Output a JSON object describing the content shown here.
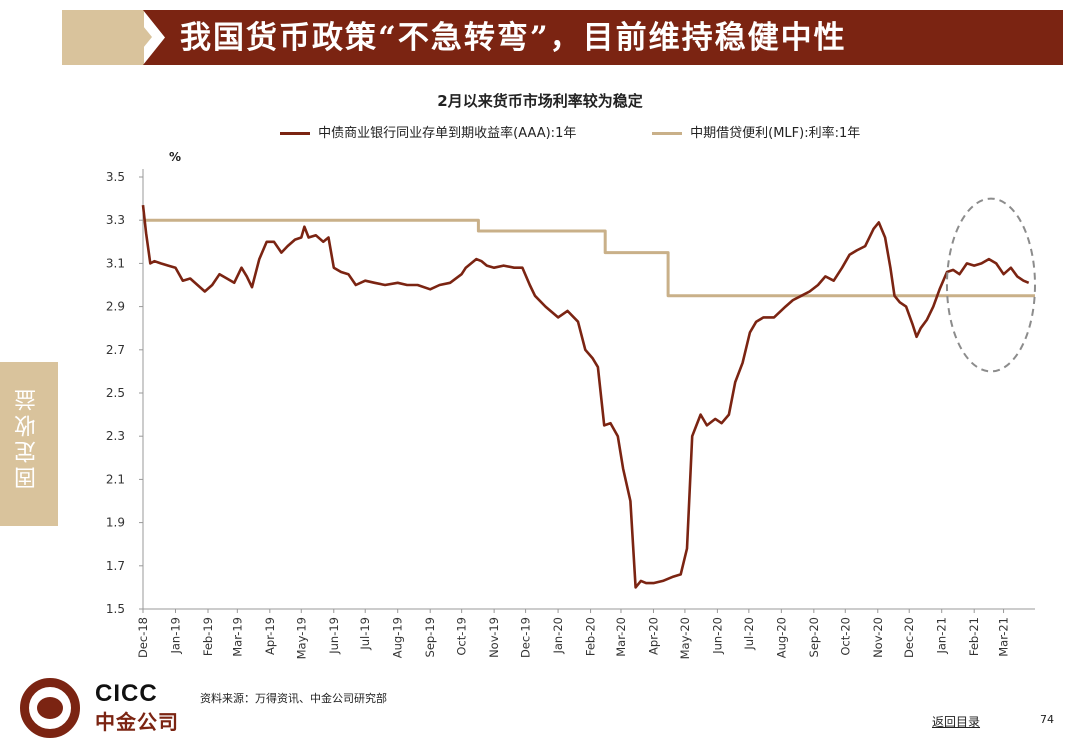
{
  "banner": {
    "title": "我国货币政策“不急转弯”，目前维持稳健中性"
  },
  "side_tab": {
    "label": "固定收益"
  },
  "footer": {
    "logo_en": "CICC",
    "logo_cn": "中金公司",
    "source": "资料来源：万得资讯、中金公司研究部",
    "back_link": "返回目录",
    "page_number": "74"
  },
  "colors": {
    "brand": "#7b2412",
    "accent": "#d9c39c",
    "series_cd": "#7b2412",
    "series_mlf": "#c9b089",
    "highlight": "#8c8c8c"
  },
  "chart_data": {
    "type": "line",
    "title": "2月以来货币市场利率较为稳定",
    "yunit": "%",
    "ylim": [
      1.5,
      3.5
    ],
    "yticks": [
      "3.5",
      "3.3",
      "3.1",
      "2.9",
      "2.7",
      "2.5",
      "2.3",
      "2.1",
      "1.9",
      "1.7",
      "1.5"
    ],
    "xlim": [
      "2018-12-01",
      "2021-03-31"
    ],
    "xticks": [
      "Dec-18",
      "Jan-19",
      "Feb-19",
      "Mar-19",
      "Apr-19",
      "May-19",
      "Jun-19",
      "Jul-19",
      "Aug-19",
      "Sep-19",
      "Oct-19",
      "Nov-19",
      "Dec-19",
      "Jan-20",
      "Feb-20",
      "Mar-20",
      "Apr-20",
      "May-20",
      "Jun-20",
      "Jul-20",
      "Aug-20",
      "Sep-20",
      "Oct-20",
      "Nov-20",
      "Dec-20",
      "Jan-21",
      "Feb-21",
      "Mar-21"
    ],
    "legend_position": "top",
    "highlight_ellipse": {
      "x_from": "2021-01-06",
      "x_to": "2021-03-31",
      "y_from": 2.6,
      "y_to": 3.4
    },
    "series": [
      {
        "name": "中债商业银行同业存单到期收益率(AAA):1年",
        "x": [
          "2018-12-01",
          "2018-12-04",
          "2018-12-08",
          "2018-12-12",
          "2018-12-18",
          "2018-12-25",
          "2019-01-01",
          "2019-01-08",
          "2019-01-15",
          "2019-01-22",
          "2019-01-29",
          "2019-02-05",
          "2019-02-12",
          "2019-02-19",
          "2019-02-26",
          "2019-03-05",
          "2019-03-10",
          "2019-03-15",
          "2019-03-22",
          "2019-03-29",
          "2019-04-05",
          "2019-04-12",
          "2019-04-18",
          "2019-04-25",
          "2019-05-01",
          "2019-05-04",
          "2019-05-08",
          "2019-05-15",
          "2019-05-22",
          "2019-05-27",
          "2019-06-01",
          "2019-06-08",
          "2019-06-15",
          "2019-06-22",
          "2019-07-01",
          "2019-07-10",
          "2019-07-20",
          "2019-08-01",
          "2019-08-10",
          "2019-08-20",
          "2019-09-01",
          "2019-09-10",
          "2019-09-20",
          "2019-10-01",
          "2019-10-05",
          "2019-10-10",
          "2019-10-15",
          "2019-10-20",
          "2019-10-25",
          "2019-11-01",
          "2019-11-10",
          "2019-11-20",
          "2019-11-28",
          "2019-12-05",
          "2019-12-10",
          "2019-12-20",
          "2020-01-01",
          "2020-01-10",
          "2020-01-20",
          "2020-01-27",
          "2020-02-03",
          "2020-02-08",
          "2020-02-14",
          "2020-02-20",
          "2020-02-27",
          "2020-03-03",
          "2020-03-10",
          "2020-03-15",
          "2020-03-20",
          "2020-03-25",
          "2020-04-01",
          "2020-04-10",
          "2020-04-20",
          "2020-04-27",
          "2020-05-03",
          "2020-05-08",
          "2020-05-12",
          "2020-05-16",
          "2020-05-22",
          "2020-05-30",
          "2020-06-05",
          "2020-06-12",
          "2020-06-18",
          "2020-06-25",
          "2020-07-02",
          "2020-07-08",
          "2020-07-15",
          "2020-07-25",
          "2020-08-05",
          "2020-08-12",
          "2020-08-20",
          "2020-08-28",
          "2020-09-05",
          "2020-09-12",
          "2020-09-20",
          "2020-09-28",
          "2020-10-05",
          "2020-10-12",
          "2020-10-20",
          "2020-10-28",
          "2020-11-02",
          "2020-11-08",
          "2020-11-13",
          "2020-11-17",
          "2020-11-22",
          "2020-11-28",
          "2020-12-04",
          "2020-12-08",
          "2020-12-12",
          "2020-12-18",
          "2020-12-24",
          "2020-12-30",
          "2021-01-06",
          "2021-01-12",
          "2021-01-18",
          "2021-01-25",
          "2021-02-01",
          "2021-02-08",
          "2021-02-15",
          "2021-02-22",
          "2021-03-01",
          "2021-03-08",
          "2021-03-14",
          "2021-03-20",
          "2021-03-25"
        ],
        "values": [
          3.37,
          3.24,
          3.1,
          3.11,
          3.1,
          3.09,
          3.08,
          3.02,
          3.03,
          3.0,
          2.97,
          3.0,
          3.05,
          3.03,
          3.01,
          3.08,
          3.04,
          2.99,
          3.12,
          3.2,
          3.2,
          3.15,
          3.18,
          3.21,
          3.22,
          3.27,
          3.22,
          3.23,
          3.2,
          3.22,
          3.08,
          3.06,
          3.05,
          3.0,
          3.02,
          3.01,
          3.0,
          3.01,
          3.0,
          3.0,
          2.98,
          3.0,
          3.01,
          3.05,
          3.08,
          3.1,
          3.12,
          3.11,
          3.09,
          3.08,
          3.09,
          3.08,
          3.08,
          3.0,
          2.95,
          2.9,
          2.85,
          2.88,
          2.83,
          2.7,
          2.66,
          2.62,
          2.35,
          2.36,
          2.3,
          2.15,
          2.0,
          1.6,
          1.63,
          1.62,
          1.62,
          1.63,
          1.65,
          1.66,
          1.78,
          2.3,
          2.35,
          2.4,
          2.35,
          2.38,
          2.36,
          2.4,
          2.55,
          2.64,
          2.78,
          2.83,
          2.85,
          2.85,
          2.9,
          2.93,
          2.95,
          2.97,
          3.0,
          3.04,
          3.02,
          3.08,
          3.14,
          3.16,
          3.18,
          3.26,
          3.29,
          3.22,
          3.08,
          2.95,
          2.92,
          2.9,
          2.82,
          2.76,
          2.8,
          2.84,
          2.9,
          2.98,
          3.06,
          3.07,
          3.05,
          3.1,
          3.09,
          3.1,
          3.12,
          3.1,
          3.05,
          3.08,
          3.04,
          3.02,
          3.01
        ]
      },
      {
        "name": "中期借贷便利(MLF):利率:1年",
        "x": [
          "2018-12-01",
          "2019-10-17",
          "2019-10-17",
          "2020-02-15",
          "2020-02-15",
          "2020-04-15",
          "2020-04-15",
          "2021-03-31"
        ],
        "values": [
          3.3,
          3.3,
          3.25,
          3.25,
          3.15,
          3.15,
          2.95,
          2.95
        ]
      }
    ]
  }
}
